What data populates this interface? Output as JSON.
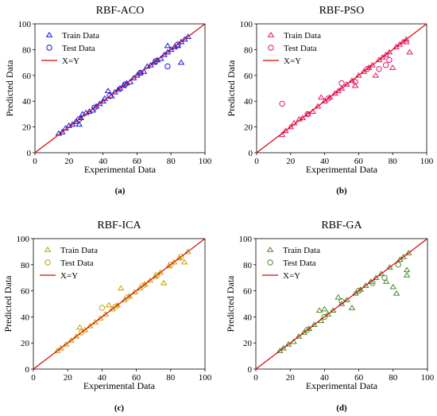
{
  "chart_data": [
    {
      "type": "scatter",
      "title": "RBF-ACO",
      "caption": "(a)",
      "xlabel": "Experimental Data",
      "ylabel": "Predicted Data",
      "xlim": [
        0,
        100
      ],
      "ylim": [
        0,
        100
      ],
      "xticks": [
        "0",
        "20",
        "40",
        "60",
        "80",
        "100"
      ],
      "yticks": [
        "0",
        "20",
        "40",
        "60",
        "80",
        "100"
      ],
      "color": "#1414e0",
      "legend_position": "top-left",
      "legend": {
        "train": "Train Data",
        "test": "Test Data",
        "line": "X=Y"
      },
      "series": [
        {
          "name": "Train Data",
          "marker": "triangle",
          "points": [
            [
              14,
              15
            ],
            [
              16,
              16
            ],
            [
              18,
              19
            ],
            [
              20,
              21
            ],
            [
              22,
              22
            ],
            [
              24,
              24
            ],
            [
              26,
              22
            ],
            [
              27,
              27
            ],
            [
              28,
              30
            ],
            [
              30,
              31
            ],
            [
              32,
              32
            ],
            [
              34,
              33
            ],
            [
              36,
              36
            ],
            [
              38,
              38
            ],
            [
              40,
              40
            ],
            [
              41,
              42
            ],
            [
              43,
              48
            ],
            [
              45,
              44
            ],
            [
              47,
              47
            ],
            [
              49,
              49
            ],
            [
              50,
              50
            ],
            [
              52,
              52
            ],
            [
              54,
              54
            ],
            [
              56,
              55
            ],
            [
              58,
              58
            ],
            [
              60,
              60
            ],
            [
              62,
              62
            ],
            [
              64,
              63
            ],
            [
              66,
              67
            ],
            [
              68,
              68
            ],
            [
              70,
              70
            ],
            [
              72,
              72
            ],
            [
              74,
              73
            ],
            [
              76,
              76
            ],
            [
              78,
              78
            ],
            [
              80,
              80
            ],
            [
              82,
              82
            ],
            [
              84,
              83
            ],
            [
              86,
              86
            ],
            [
              88,
              88
            ],
            [
              86,
              70
            ],
            [
              90,
              90
            ],
            [
              78,
              83
            ]
          ]
        },
        {
          "name": "Test Data",
          "marker": "circle",
          "points": [
            [
              26,
              26
            ],
            [
              35,
              35
            ],
            [
              44,
              44
            ],
            [
              53,
              53
            ],
            [
              62,
              62
            ],
            [
              71,
              71
            ],
            [
              78,
              67
            ],
            [
              84,
              84
            ]
          ]
        }
      ]
    },
    {
      "type": "scatter",
      "title": "RBF-PSO",
      "caption": "(b)",
      "xlabel": "Experimental Data",
      "ylabel": "Predicted Data",
      "xlim": [
        0,
        100
      ],
      "ylim": [
        0,
        100
      ],
      "xticks": [
        "0",
        "20",
        "40",
        "60",
        "80",
        "100"
      ],
      "yticks": [
        "0",
        "20",
        "40",
        "60",
        "80",
        "100"
      ],
      "color": "#e6146e",
      "legend_position": "top-left",
      "legend": {
        "train": "Train Data",
        "test": "Test Data",
        "line": "X=Y"
      },
      "series": [
        {
          "name": "Train Data",
          "marker": "triangle",
          "points": [
            [
              15,
              14
            ],
            [
              17,
              17
            ],
            [
              20,
              20
            ],
            [
              22,
              23
            ],
            [
              25,
              26
            ],
            [
              27,
              27
            ],
            [
              30,
              30
            ],
            [
              33,
              32
            ],
            [
              36,
              36
            ],
            [
              38,
              43
            ],
            [
              40,
              40
            ],
            [
              43,
              43
            ],
            [
              46,
              46
            ],
            [
              48,
              48
            ],
            [
              50,
              50
            ],
            [
              53,
              53
            ],
            [
              56,
              56
            ],
            [
              58,
              52
            ],
            [
              60,
              60
            ],
            [
              63,
              63
            ],
            [
              66,
              66
            ],
            [
              68,
              68
            ],
            [
              70,
              60
            ],
            [
              72,
              72
            ],
            [
              74,
              74
            ],
            [
              76,
              76
            ],
            [
              78,
              78
            ],
            [
              80,
              66
            ],
            [
              82,
              82
            ],
            [
              84,
              84
            ],
            [
              86,
              86
            ],
            [
              88,
              88
            ],
            [
              90,
              78
            ],
            [
              88,
              86
            ]
          ]
        },
        {
          "name": "Test Data",
          "marker": "circle",
          "points": [
            [
              15,
              38
            ],
            [
              30,
              30
            ],
            [
              42,
              42
            ],
            [
              50,
              54
            ],
            [
              58,
              55
            ],
            [
              65,
              65
            ],
            [
              72,
              65
            ],
            [
              76,
              68
            ],
            [
              78,
              72
            ]
          ]
        }
      ]
    },
    {
      "type": "scatter",
      "title": "RBF-ICA",
      "caption": "(c)",
      "xlabel": "Experimental Data",
      "ylabel": "Predicted Data",
      "xlim": [
        0,
        100
      ],
      "ylim": [
        0,
        100
      ],
      "xticks": [
        "0",
        "20",
        "40",
        "60",
        "80",
        "100"
      ],
      "yticks": [
        "0",
        "20",
        "40",
        "60",
        "80",
        "100"
      ],
      "color": "#c8a000",
      "legend_position": "top-left",
      "legend": {
        "train": "Train Data",
        "test": "Test Data",
        "line": "X=Y"
      },
      "series": [
        {
          "name": "Train Data",
          "marker": "triangle",
          "points": [
            [
              14,
              14
            ],
            [
              16,
              16
            ],
            [
              19,
              19
            ],
            [
              22,
              22
            ],
            [
              25,
              25
            ],
            [
              27,
              32
            ],
            [
              30,
              30
            ],
            [
              33,
              33
            ],
            [
              36,
              36
            ],
            [
              39,
              39
            ],
            [
              42,
              42
            ],
            [
              44,
              49
            ],
            [
              46,
              46
            ],
            [
              49,
              49
            ],
            [
              51,
              62
            ],
            [
              53,
              53
            ],
            [
              56,
              56
            ],
            [
              59,
              59
            ],
            [
              62,
              62
            ],
            [
              65,
              65
            ],
            [
              68,
              68
            ],
            [
              71,
              71
            ],
            [
              74,
              74
            ],
            [
              76,
              66
            ],
            [
              79,
              79
            ],
            [
              82,
              82
            ],
            [
              85,
              85
            ],
            [
              88,
              82
            ],
            [
              90,
              90
            ]
          ]
        },
        {
          "name": "Test Data",
          "marker": "circle",
          "points": [
            [
              28,
              28
            ],
            [
              40,
              47
            ],
            [
              48,
              48
            ],
            [
              55,
              55
            ],
            [
              64,
              64
            ],
            [
              72,
              72
            ],
            [
              80,
              80
            ],
            [
              86,
              86
            ]
          ]
        }
      ]
    },
    {
      "type": "scatter",
      "title": "RBF-GA",
      "caption": "(d)",
      "xlabel": "Experimental Data",
      "ylabel": "Predicted Data",
      "xlim": [
        0,
        100
      ],
      "ylim": [
        0,
        100
      ],
      "xticks": [
        "0",
        "20",
        "40",
        "60",
        "80",
        "100"
      ],
      "yticks": [
        "0",
        "20",
        "40",
        "60",
        "80",
        "100"
      ],
      "color": "#4a8a2a",
      "legend_position": "top-left",
      "legend": {
        "train": "Train Data",
        "test": "Test Data",
        "line": "X=Y"
      },
      "series": [
        {
          "name": "Train Data",
          "marker": "triangle",
          "points": [
            [
              14,
              14
            ],
            [
              16,
              16
            ],
            [
              19,
              19
            ],
            [
              22,
              21
            ],
            [
              25,
              25
            ],
            [
              28,
              28
            ],
            [
              31,
              31
            ],
            [
              34,
              34
            ],
            [
              37,
              45
            ],
            [
              38,
              37
            ],
            [
              40,
              46
            ],
            [
              42,
              42
            ],
            [
              45,
              45
            ],
            [
              48,
              55
            ],
            [
              50,
              50
            ],
            [
              53,
              53
            ],
            [
              56,
              47
            ],
            [
              58,
              58
            ],
            [
              61,
              61
            ],
            [
              64,
              64
            ],
            [
              67,
              67
            ],
            [
              70,
              70
            ],
            [
              73,
              73
            ],
            [
              76,
              67
            ],
            [
              78,
              78
            ],
            [
              80,
              63
            ],
            [
              82,
              58
            ],
            [
              84,
              84
            ],
            [
              86,
              86
            ],
            [
              88,
              76
            ],
            [
              89,
              89
            ],
            [
              88,
              72
            ]
          ]
        },
        {
          "name": "Test Data",
          "marker": "circle",
          "points": [
            [
              30,
              30
            ],
            [
              40,
              40
            ],
            [
              50,
              52
            ],
            [
              60,
              60
            ],
            [
              68,
              66
            ],
            [
              75,
              70
            ],
            [
              83,
              80
            ]
          ]
        }
      ]
    }
  ]
}
